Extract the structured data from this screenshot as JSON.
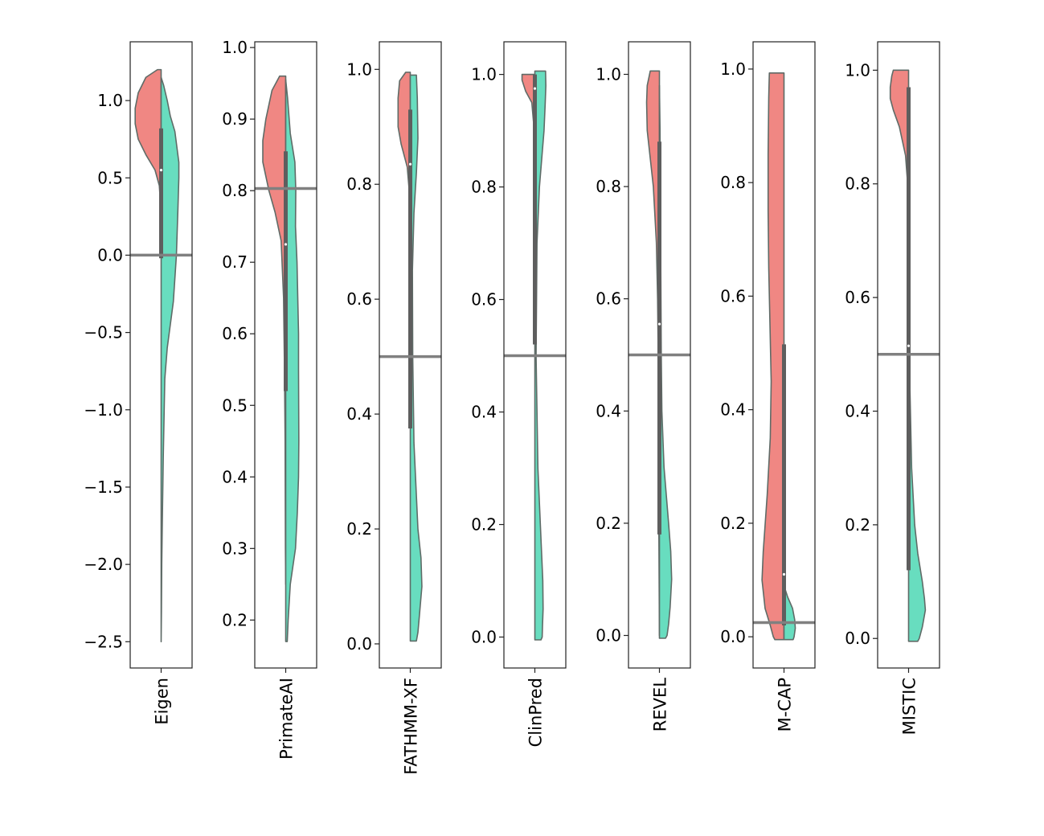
{
  "chart_data": {
    "type": "violin",
    "layout": "split violin (red = upper half-distribution, teal = lower half-distribution)",
    "colors": {
      "left": "#f08783",
      "right": "#68ddbf",
      "outline": "#5f6b67",
      "box": "#5e5e5e",
      "threshold": "#808080",
      "frame": "#222222"
    },
    "panels": [
      {
        "name": "Eigen",
        "ylim": [
          -2.67,
          1.38
        ],
        "ticks": [
          1.0,
          0.5,
          0.0,
          -0.5,
          -1.0,
          -1.5,
          -2.0,
          -2.5
        ],
        "tick_labels": [
          "1.0",
          "0.5",
          "0.0",
          "−0.5",
          "−1.0",
          "−1.5",
          "−2.0",
          "−2.5"
        ],
        "threshold": 0.0,
        "box": {
          "q1": -0.02,
          "q3": 0.82,
          "median": 0.55
        },
        "left": [
          [
            1.2,
            0.12
          ],
          [
            1.15,
            0.5
          ],
          [
            1.05,
            0.75
          ],
          [
            0.95,
            0.85
          ],
          [
            0.85,
            0.85
          ],
          [
            0.75,
            0.75
          ],
          [
            0.65,
            0.5
          ],
          [
            0.55,
            0.2
          ],
          [
            0.45,
            0.06
          ],
          [
            0.3,
            0.01
          ],
          [
            0.2,
            0.0
          ]
        ],
        "right": [
          [
            1.15,
            0.0
          ],
          [
            1.1,
            0.08
          ],
          [
            1.0,
            0.2
          ],
          [
            0.9,
            0.3
          ],
          [
            0.8,
            0.45
          ],
          [
            0.6,
            0.58
          ],
          [
            0.5,
            0.58
          ],
          [
            0.3,
            0.55
          ],
          [
            0.0,
            0.5
          ],
          [
            -0.3,
            0.4
          ],
          [
            -0.6,
            0.2
          ],
          [
            -0.8,
            0.12
          ],
          [
            -1.0,
            0.1
          ],
          [
            -1.3,
            0.07
          ],
          [
            -1.7,
            0.04
          ],
          [
            -2.0,
            0.02
          ],
          [
            -2.3,
            0.01
          ],
          [
            -2.5,
            0.0
          ]
        ]
      },
      {
        "name": "PrimateAI",
        "ylim": [
          0.133,
          1.008
        ],
        "ticks": [
          1.0,
          0.9,
          0.8,
          0.7,
          0.6,
          0.5,
          0.4,
          0.3,
          0.2
        ],
        "tick_labels": [
          "1.0",
          "0.9",
          "0.8",
          "0.7",
          "0.6",
          "0.5",
          "0.4",
          "0.3",
          "0.2"
        ],
        "threshold": 0.803,
        "box": {
          "q1": 0.52,
          "q3": 0.855,
          "median": 0.725
        },
        "left": [
          [
            0.96,
            0.2
          ],
          [
            0.94,
            0.45
          ],
          [
            0.9,
            0.65
          ],
          [
            0.87,
            0.75
          ],
          [
            0.84,
            0.75
          ],
          [
            0.8,
            0.55
          ],
          [
            0.77,
            0.35
          ],
          [
            0.73,
            0.15
          ],
          [
            0.65,
            0.07
          ],
          [
            0.55,
            0.04
          ],
          [
            0.45,
            0.02
          ],
          [
            0.3,
            0.01
          ],
          [
            0.25,
            0.0
          ]
        ],
        "right": [
          [
            0.955,
            0.0
          ],
          [
            0.93,
            0.06
          ],
          [
            0.88,
            0.15
          ],
          [
            0.84,
            0.3
          ],
          [
            0.8,
            0.33
          ],
          [
            0.75,
            0.32
          ],
          [
            0.7,
            0.37
          ],
          [
            0.6,
            0.42
          ],
          [
            0.55,
            0.42
          ],
          [
            0.45,
            0.43
          ],
          [
            0.4,
            0.42
          ],
          [
            0.35,
            0.38
          ],
          [
            0.3,
            0.32
          ],
          [
            0.25,
            0.15
          ],
          [
            0.2,
            0.08
          ],
          [
            0.17,
            0.05
          ]
        ]
      },
      {
        "name": "FATHMM-XF",
        "ylim": [
          -0.042,
          1.048
        ],
        "ticks": [
          1.0,
          0.8,
          0.6,
          0.4,
          0.2,
          0.0
        ],
        "tick_labels": [
          "1.0",
          "0.8",
          "0.6",
          "0.4",
          "0.2",
          "0.0"
        ],
        "threshold": 0.5,
        "box": {
          "q1": 0.375,
          "q3": 0.93,
          "median": 0.835
        },
        "left": [
          [
            0.995,
            0.15
          ],
          [
            0.98,
            0.35
          ],
          [
            0.95,
            0.4
          ],
          [
            0.9,
            0.4
          ],
          [
            0.87,
            0.3
          ],
          [
            0.83,
            0.1
          ],
          [
            0.78,
            0.02
          ],
          [
            0.7,
            0.0
          ]
        ],
        "right": [
          [
            0.99,
            0.2
          ],
          [
            0.95,
            0.23
          ],
          [
            0.88,
            0.25
          ],
          [
            0.82,
            0.2
          ],
          [
            0.75,
            0.12
          ],
          [
            0.65,
            0.07
          ],
          [
            0.5,
            0.08
          ],
          [
            0.35,
            0.12
          ],
          [
            0.2,
            0.25
          ],
          [
            0.15,
            0.35
          ],
          [
            0.1,
            0.38
          ],
          [
            0.05,
            0.3
          ],
          [
            0.02,
            0.25
          ],
          [
            0.005,
            0.2
          ],
          [
            0.005,
            0.0
          ]
        ]
      },
      {
        "name": "ClinPred",
        "ylim": [
          -0.055,
          1.058
        ],
        "ticks": [
          1.0,
          0.8,
          0.6,
          0.4,
          0.2,
          0.0
        ],
        "tick_labels": [
          "1.0",
          "0.8",
          "0.6",
          "0.4",
          "0.2",
          "0.0"
        ],
        "threshold": 0.5,
        "box": {
          "q1": 0.52,
          "q3": 1.0,
          "median": 0.975
        },
        "left": [
          [
            1.0,
            0.42
          ],
          [
            0.99,
            0.42
          ],
          [
            0.97,
            0.3
          ],
          [
            0.95,
            0.1
          ],
          [
            0.9,
            0.02
          ],
          [
            0.85,
            0.0
          ]
        ],
        "right": [
          [
            1.006,
            0.35
          ],
          [
            0.98,
            0.36
          ],
          [
            0.95,
            0.34
          ],
          [
            0.9,
            0.3
          ],
          [
            0.8,
            0.15
          ],
          [
            0.7,
            0.07
          ],
          [
            0.5,
            0.04
          ],
          [
            0.3,
            0.1
          ],
          [
            0.2,
            0.18
          ],
          [
            0.1,
            0.26
          ],
          [
            0.05,
            0.27
          ],
          [
            0.02,
            0.25
          ],
          [
            0.0,
            0.24
          ],
          [
            -0.005,
            0.2
          ],
          [
            -0.005,
            0.0
          ]
        ]
      },
      {
        "name": "REVEL",
        "ylim": [
          -0.058,
          1.058
        ],
        "ticks": [
          1.0,
          0.8,
          0.6,
          0.4,
          0.2,
          0.0
        ],
        "tick_labels": [
          "1.0",
          "0.8",
          "0.6",
          "0.4",
          "0.2",
          "0.0"
        ],
        "threshold": 0.5,
        "box": {
          "q1": 0.18,
          "q3": 0.88,
          "median": 0.555
        },
        "left": [
          [
            1.006,
            0.3
          ],
          [
            0.98,
            0.4
          ],
          [
            0.95,
            0.42
          ],
          [
            0.9,
            0.4
          ],
          [
            0.85,
            0.3
          ],
          [
            0.8,
            0.2
          ],
          [
            0.7,
            0.1
          ],
          [
            0.6,
            0.06
          ],
          [
            0.5,
            0.04
          ],
          [
            0.35,
            0.03
          ],
          [
            0.2,
            0.02
          ],
          [
            0.1,
            0.01
          ],
          [
            0.0,
            0.0
          ]
        ],
        "right": [
          [
            0.98,
            0.0
          ],
          [
            0.9,
            0.02
          ],
          [
            0.8,
            0.03
          ],
          [
            0.6,
            0.05
          ],
          [
            0.5,
            0.06
          ],
          [
            0.4,
            0.08
          ],
          [
            0.3,
            0.15
          ],
          [
            0.2,
            0.3
          ],
          [
            0.15,
            0.37
          ],
          [
            0.1,
            0.4
          ],
          [
            0.05,
            0.35
          ],
          [
            0.02,
            0.3
          ],
          [
            0.0,
            0.25
          ],
          [
            -0.005,
            0.2
          ],
          [
            -0.005,
            0.0
          ]
        ]
      },
      {
        "name": "M-CAP",
        "ylim": [
          -0.055,
          1.048
        ],
        "ticks": [
          1.0,
          0.8,
          0.6,
          0.4,
          0.2,
          0.0
        ],
        "tick_labels": [
          "1.0",
          "0.8",
          "0.6",
          "0.4",
          "0.2",
          "0.0"
        ],
        "threshold": 0.025,
        "box": {
          "q1": 0.02,
          "q3": 0.515,
          "median": 0.11
        },
        "left": [
          [
            0.993,
            0.48
          ],
          [
            0.95,
            0.5
          ],
          [
            0.85,
            0.52
          ],
          [
            0.75,
            0.52
          ],
          [
            0.65,
            0.5
          ],
          [
            0.55,
            0.46
          ],
          [
            0.45,
            0.42
          ],
          [
            0.35,
            0.45
          ],
          [
            0.25,
            0.55
          ],
          [
            0.15,
            0.68
          ],
          [
            0.1,
            0.72
          ],
          [
            0.05,
            0.62
          ],
          [
            0.02,
            0.45
          ],
          [
            0.0,
            0.35
          ],
          [
            -0.005,
            0.3
          ],
          [
            -0.005,
            0.0
          ]
        ],
        "right": [
          [
            0.09,
            0.0
          ],
          [
            0.07,
            0.12
          ],
          [
            0.05,
            0.28
          ],
          [
            0.03,
            0.35
          ],
          [
            0.015,
            0.37
          ],
          [
            0.0,
            0.33
          ],
          [
            -0.005,
            0.3
          ],
          [
            -0.005,
            0.0
          ]
        ]
      },
      {
        "name": "MISTIC",
        "ylim": [
          -0.052,
          1.05
        ],
        "ticks": [
          1.0,
          0.8,
          0.6,
          0.4,
          0.2,
          0.0
        ],
        "tick_labels": [
          "1.0",
          "0.8",
          "0.6",
          "0.4",
          "0.2",
          "0.0"
        ],
        "threshold": 0.5,
        "box": {
          "q1": 0.12,
          "q3": 0.97,
          "median": 0.515
        },
        "left": [
          [
            1.0,
            0.5
          ],
          [
            0.99,
            0.55
          ],
          [
            0.97,
            0.6
          ],
          [
            0.95,
            0.6
          ],
          [
            0.93,
            0.5
          ],
          [
            0.9,
            0.3
          ],
          [
            0.85,
            0.1
          ],
          [
            0.8,
            0.03
          ],
          [
            0.75,
            0.0
          ]
        ],
        "right": [
          [
            0.9,
            0.0
          ],
          [
            0.8,
            0.01
          ],
          [
            0.6,
            0.02
          ],
          [
            0.45,
            0.04
          ],
          [
            0.3,
            0.1
          ],
          [
            0.2,
            0.2
          ],
          [
            0.15,
            0.3
          ],
          [
            0.1,
            0.45
          ],
          [
            0.07,
            0.52
          ],
          [
            0.05,
            0.55
          ],
          [
            0.02,
            0.45
          ],
          [
            0.0,
            0.35
          ],
          [
            -0.005,
            0.3
          ],
          [
            -0.005,
            0.0
          ]
        ]
      }
    ]
  }
}
